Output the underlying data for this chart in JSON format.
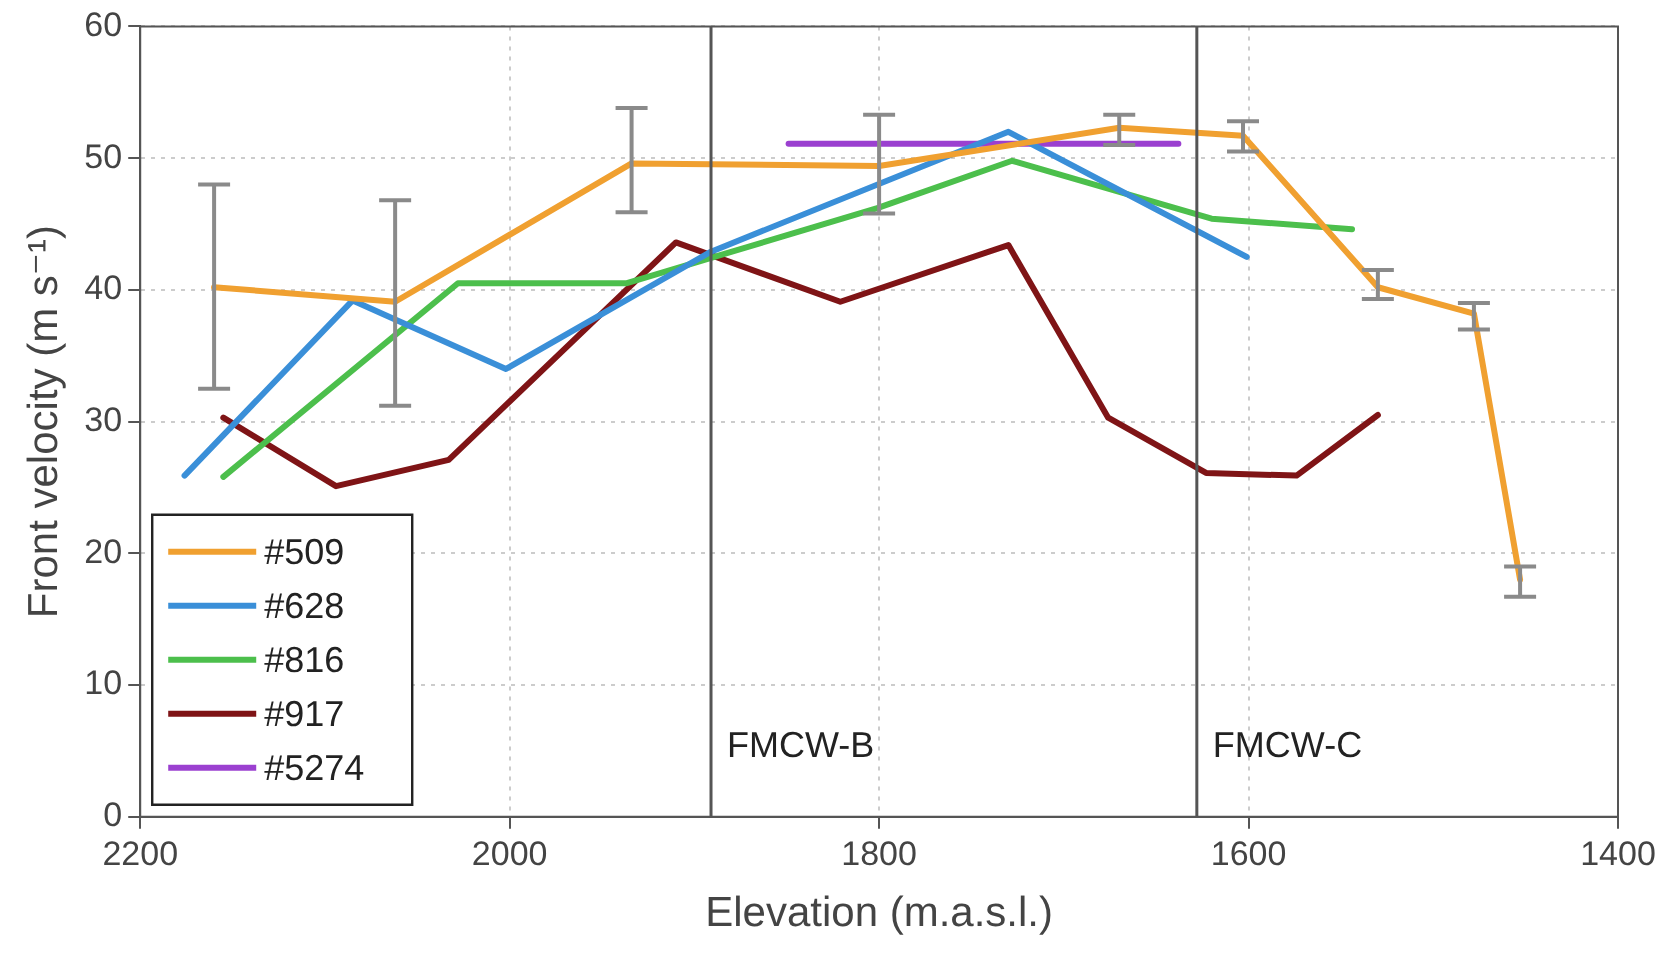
{
  "chart_data": {
    "type": "line",
    "xlabel": "Elevation (m.a.s.l.)",
    "ylabel": "Front velocity (m s⁻¹)",
    "xlim": [
      2200,
      1400
    ],
    "xticks": [
      2200,
      2000,
      1800,
      1600,
      1400
    ],
    "ylim": [
      0,
      60
    ],
    "yticks": [
      0,
      10,
      20,
      30,
      40,
      50,
      60
    ],
    "grid": true,
    "legend": "bottom left",
    "line_style": "solid",
    "ref_lines": [
      {
        "axis": "x",
        "value": 1891,
        "label": "FMCW-B",
        "color": "#555555"
      },
      {
        "axis": "x",
        "value": 1628,
        "label": "FMCW-C",
        "color": "#555555"
      }
    ],
    "series": [
      {
        "name": "#509",
        "color": "#f0a030",
        "x": [
          2160,
          2062,
          1934,
          1800,
          1670,
          1603,
          1530,
          1478,
          1453
        ],
        "values": [
          40.2,
          39.1,
          49.6,
          49.4,
          52.3,
          51.7,
          40.2,
          38.2,
          18.0
        ],
        "errors": [
          [
            32.5,
            48
          ],
          [
            31.2,
            46.8
          ],
          [
            45.9,
            53.8
          ],
          [
            45.8,
            53.3
          ],
          [
            51.0,
            53.3
          ],
          [
            50.5,
            52.8
          ],
          [
            39.3,
            41.5
          ],
          [
            37,
            39
          ],
          [
            16.7,
            19
          ]
        ]
      },
      {
        "name": "#628",
        "color": "#3a8fd8",
        "x": [
          2176,
          2085,
          2002,
          1891,
          1730,
          1601
        ],
        "values": [
          25.9,
          39.2,
          34.0,
          42.9,
          52.0,
          42.5
        ]
      },
      {
        "name": "#816",
        "color": "#4cbf4c",
        "x": [
          2155,
          2028,
          1937,
          1801,
          1728,
          1620,
          1544
        ],
        "values": [
          25.8,
          40.5,
          40.5,
          46.2,
          49.8,
          45.4,
          44.6
        ]
      },
      {
        "name": "#917",
        "color": "#7f1416",
        "x": [
          2155,
          2094,
          2033,
          1910,
          1821,
          1730,
          1676,
          1623,
          1574,
          1530
        ],
        "values": [
          30.3,
          25.1,
          27.1,
          43.6,
          39.1,
          43.4,
          30.3,
          26.1,
          25.9,
          30.5
        ]
      },
      {
        "name": "#5274",
        "color": "#9b40d0",
        "x": [
          1849,
          1638
        ],
        "values": [
          51.1,
          51.1
        ]
      }
    ]
  }
}
